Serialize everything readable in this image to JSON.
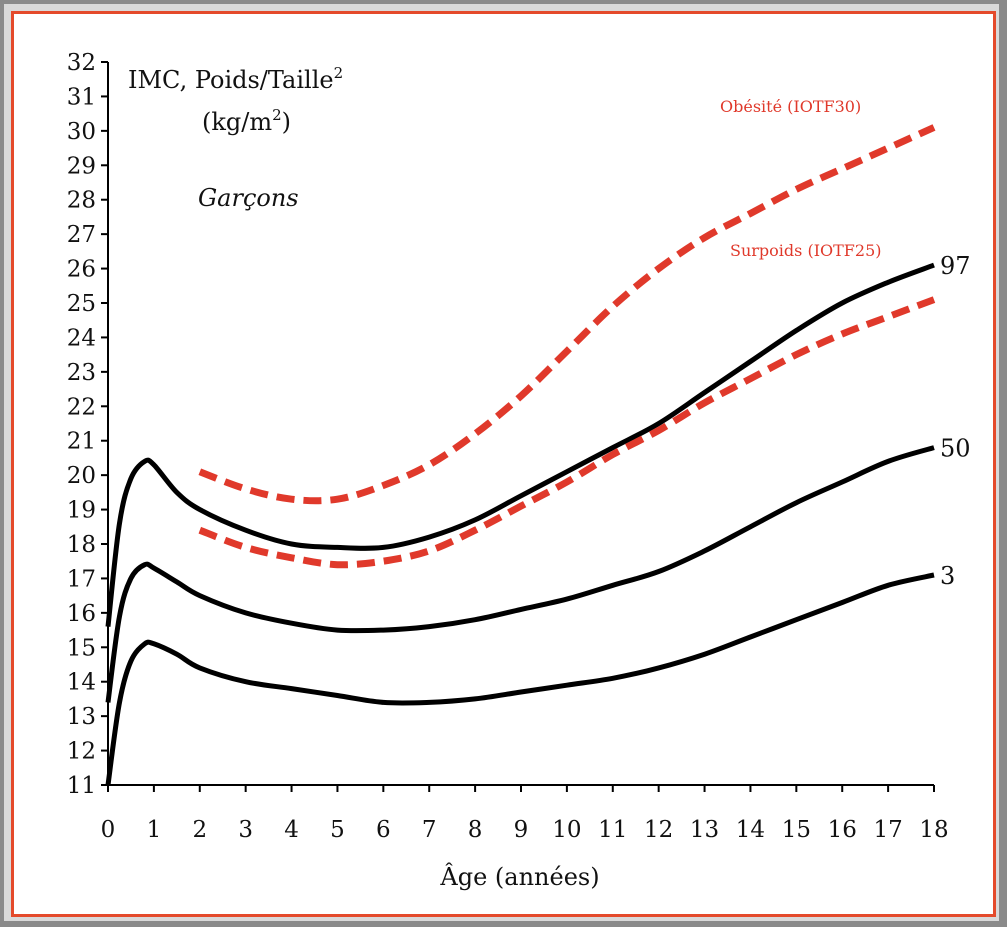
{
  "chart_data": {
    "type": "line",
    "title": "IMC, Poids/Taille²",
    "title_main": "IMC, Poids/Taille",
    "title_sup": "2",
    "unit_main": "(kg/m",
    "unit_sup": "2",
    "unit_close": ")",
    "subtitle": "Garçons",
    "xlabel": "Âge (années)",
    "ylabel": "",
    "xlim": [
      0,
      18
    ],
    "ylim": [
      11,
      32
    ],
    "grid": false,
    "x_ticks": [
      "0",
      "1",
      "2",
      "3",
      "4",
      "5",
      "6",
      "7",
      "8",
      "9",
      "10",
      "11",
      "12",
      "13",
      "14",
      "15",
      "16",
      "17",
      "18"
    ],
    "y_ticks": [
      "11",
      "12",
      "13",
      "14",
      "15",
      "16",
      "17",
      "18",
      "19",
      "20",
      "21",
      "22",
      "23",
      "24",
      "25",
      "26",
      "27",
      "28",
      "29",
      "30",
      "31",
      "32"
    ],
    "series": [
      {
        "name": "97",
        "color": "#000000",
        "style": "solid",
        "end_label": "97",
        "points": [
          [
            0,
            15.6
          ],
          [
            0.25,
            18.6
          ],
          [
            0.5,
            19.9
          ],
          [
            0.8,
            20.4
          ],
          [
            1,
            20.3
          ],
          [
            1.5,
            19.5
          ],
          [
            2,
            19.0
          ],
          [
            3,
            18.4
          ],
          [
            4,
            18.0
          ],
          [
            5,
            17.9
          ],
          [
            6,
            17.9
          ],
          [
            7,
            18.2
          ],
          [
            8,
            18.7
          ],
          [
            9,
            19.4
          ],
          [
            10,
            20.1
          ],
          [
            11,
            20.8
          ],
          [
            12,
            21.5
          ],
          [
            13,
            22.4
          ],
          [
            14,
            23.3
          ],
          [
            15,
            24.2
          ],
          [
            16,
            25.0
          ],
          [
            17,
            25.6
          ],
          [
            18,
            26.1
          ]
        ]
      },
      {
        "name": "50",
        "color": "#000000",
        "style": "solid",
        "end_label": "50",
        "points": [
          [
            0,
            13.4
          ],
          [
            0.25,
            15.9
          ],
          [
            0.5,
            17.0
          ],
          [
            0.8,
            17.4
          ],
          [
            1,
            17.3
          ],
          [
            1.5,
            16.9
          ],
          [
            2,
            16.5
          ],
          [
            3,
            16.0
          ],
          [
            4,
            15.7
          ],
          [
            5,
            15.5
          ],
          [
            6,
            15.5
          ],
          [
            7,
            15.6
          ],
          [
            8,
            15.8
          ],
          [
            9,
            16.1
          ],
          [
            10,
            16.4
          ],
          [
            11,
            16.8
          ],
          [
            12,
            17.2
          ],
          [
            13,
            17.8
          ],
          [
            14,
            18.5
          ],
          [
            15,
            19.2
          ],
          [
            16,
            19.8
          ],
          [
            17,
            20.4
          ],
          [
            18,
            20.8
          ]
        ]
      },
      {
        "name": "3",
        "color": "#000000",
        "style": "solid",
        "end_label": "3",
        "points": [
          [
            0,
            11.0
          ],
          [
            0.25,
            13.4
          ],
          [
            0.5,
            14.6
          ],
          [
            0.8,
            15.1
          ],
          [
            1,
            15.1
          ],
          [
            1.5,
            14.8
          ],
          [
            2,
            14.4
          ],
          [
            3,
            14.0
          ],
          [
            4,
            13.8
          ],
          [
            5,
            13.6
          ],
          [
            6,
            13.4
          ],
          [
            7,
            13.4
          ],
          [
            8,
            13.5
          ],
          [
            9,
            13.7
          ],
          [
            10,
            13.9
          ],
          [
            11,
            14.1
          ],
          [
            12,
            14.4
          ],
          [
            13,
            14.8
          ],
          [
            14,
            15.3
          ],
          [
            15,
            15.8
          ],
          [
            16,
            16.3
          ],
          [
            17,
            16.8
          ],
          [
            18,
            17.1
          ]
        ]
      },
      {
        "name": "Obésité (IOTF30)",
        "color": "#e0392b",
        "style": "dashed",
        "label_text": "Obésité (IOTF30)",
        "points": [
          [
            2,
            20.1
          ],
          [
            3,
            19.6
          ],
          [
            4,
            19.3
          ],
          [
            5,
            19.3
          ],
          [
            6,
            19.7
          ],
          [
            7,
            20.3
          ],
          [
            8,
            21.2
          ],
          [
            9,
            22.3
          ],
          [
            10,
            23.6
          ],
          [
            11,
            24.9
          ],
          [
            12,
            26.0
          ],
          [
            13,
            26.9
          ],
          [
            14,
            27.6
          ],
          [
            15,
            28.3
          ],
          [
            16,
            28.9
          ],
          [
            17,
            29.5
          ],
          [
            18,
            30.1
          ]
        ]
      },
      {
        "name": "Surpoids (IOTF25)",
        "color": "#e0392b",
        "style": "dashed",
        "label_text": "Surpoids (IOTF25)",
        "points": [
          [
            2,
            18.4
          ],
          [
            3,
            17.9
          ],
          [
            4,
            17.6
          ],
          [
            5,
            17.4
          ],
          [
            6,
            17.5
          ],
          [
            7,
            17.8
          ],
          [
            8,
            18.4
          ],
          [
            9,
            19.1
          ],
          [
            10,
            19.8
          ],
          [
            11,
            20.6
          ],
          [
            12,
            21.3
          ],
          [
            13,
            22.1
          ],
          [
            14,
            22.8
          ],
          [
            15,
            23.5
          ],
          [
            16,
            24.1
          ],
          [
            17,
            24.6
          ],
          [
            18,
            25.1
          ]
        ]
      }
    ]
  }
}
